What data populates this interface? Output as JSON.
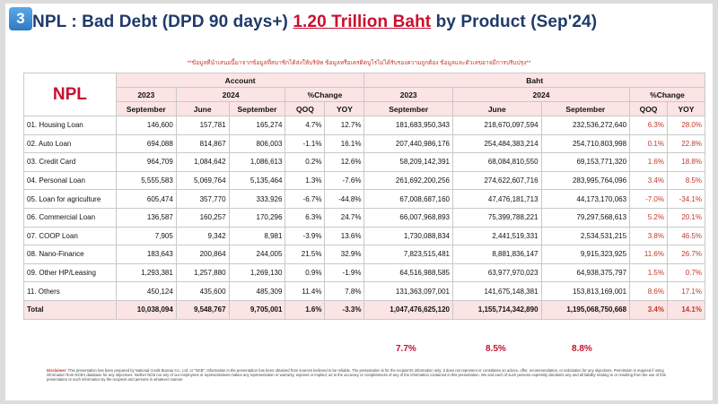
{
  "slide_number": "3",
  "title": {
    "prefix": "NPL : Bad Debt (DPD 90 days+) ",
    "highlight": "1.20 Trillion Baht",
    "suffix": " by Product (Sep'24)"
  },
  "note": "**ข้อมูลที่นำเสนอนี้มาจากข้อมูลที่สมาชิกได้ส่งให้บริษัท ข้อมูลหรือเครดิตบูโรไม่ได้รับรองความถูกต้อง ข้อมูลและตัวเลขอาจมีการปรับปรุง**",
  "table": {
    "npl_label": "NPL",
    "groups": {
      "account": "Account",
      "baht": "Baht"
    },
    "years": {
      "y2023": "2023",
      "y2024": "2024",
      "change": "%Change"
    },
    "subheaders": [
      "September",
      "June",
      "September",
      "QOQ",
      "YOY",
      "September",
      "June",
      "September",
      "QOQ",
      "YOY"
    ],
    "rows": [
      {
        "label": "01. Housing Loan",
        "acc": [
          "146,600",
          "157,781",
          "165,274",
          "4.7%",
          "12.7%"
        ],
        "baht": [
          "181,683,950,343",
          "218,670,097,594",
          "232,536,272,640",
          "6.3%",
          "28.0%"
        ]
      },
      {
        "label": "02. Auto Loan",
        "acc": [
          "694,088",
          "814,867",
          "806,003",
          "-1.1%",
          "16.1%"
        ],
        "baht": [
          "207,440,986,176",
          "254,484,383,214",
          "254,710,803,998",
          "0.1%",
          "22.8%"
        ]
      },
      {
        "label": "03. Credit Card",
        "acc": [
          "964,709",
          "1,084,642",
          "1,086,613",
          "0.2%",
          "12.6%"
        ],
        "baht": [
          "58,209,142,391",
          "68,084,810,550",
          "69,153,771,320",
          "1.6%",
          "18.8%"
        ]
      },
      {
        "label": "04. Personal Loan",
        "acc": [
          "5,555,583",
          "5,069,764",
          "5,135,464",
          "1.3%",
          "-7.6%"
        ],
        "baht": [
          "261,692,200,256",
          "274,622,607,716",
          "283,995,764,096",
          "3.4%",
          "8.5%"
        ]
      },
      {
        "label": "05. Loan for agriculture",
        "acc": [
          "605,474",
          "357,770",
          "333,926",
          "-6.7%",
          "-44.8%"
        ],
        "baht": [
          "67,008,687,160",
          "47,476,181,713",
          "44,173,170,063",
          "-7.0%",
          "-34.1%"
        ]
      },
      {
        "label": "06. Commercial Loan",
        "acc": [
          "136,587",
          "160,257",
          "170,296",
          "6.3%",
          "24.7%"
        ],
        "baht": [
          "66,007,968,893",
          "75,399,788,221",
          "79,297,568,613",
          "5.2%",
          "20.1%"
        ]
      },
      {
        "label": "07. COOP Loan",
        "acc": [
          "7,905",
          "9,342",
          "8,981",
          "-3.9%",
          "13.6%"
        ],
        "baht": [
          "1,730,088,834",
          "2,441,519,331",
          "2,534,531,215",
          "3.8%",
          "46.5%"
        ]
      },
      {
        "label": "08. Nano-Finance",
        "acc": [
          "183,643",
          "200,864",
          "244,005",
          "21.5%",
          "32.9%"
        ],
        "baht": [
          "7,823,515,481",
          "8,881,836,147",
          "9,915,323,925",
          "11.6%",
          "26.7%"
        ]
      },
      {
        "label": "09. Other HP/Leasing",
        "acc": [
          "1,293,381",
          "1,257,880",
          "1,269,130",
          "0.9%",
          "-1.9%"
        ],
        "baht": [
          "64,516,988,585",
          "63,977,970,023",
          "64,938,375,797",
          "1.5%",
          "0.7%"
        ]
      },
      {
        "label": "11. Others",
        "acc": [
          "450,124",
          "435,600",
          "485,309",
          "11.4%",
          "7.8%"
        ],
        "baht": [
          "131,363,097,001",
          "141,675,148,381",
          "153,813,169,001",
          "8.6%",
          "17.1%"
        ]
      }
    ],
    "total": {
      "label": "Total",
      "acc": [
        "10,038,094",
        "9,548,767",
        "9,705,001",
        "1.6%",
        "-3.3%"
      ],
      "baht": [
        "1,047,476,625,120",
        "1,155,714,342,890",
        "1,195,068,750,668",
        "3.4%",
        "14.1%"
      ]
    }
  },
  "growth": [
    "7.7%",
    "8.5%",
    "8.8%"
  ],
  "disclaimer": {
    "label": "Disclaimer:",
    "text": "This presentation has been prepared by National Credit Bureau Co., Ltd. or \"NCB\". Information in the presentation has been obtained from sources believed to be reliable. The presentation is for the recipient's information only; it does not represent or constitutes an advice, offer, recommendation, or solicitation for any objectives. Permission is required if using information from NCB's database for any objectives. Neither NCB nor any of our employees or representatives makes any representation or warranty, express or implied, as to the accuracy or completeness of any of the information contained in this presentation. We and each of such persons expressly disclaims any and all liability relating to or resulting from the use of this presentation or such information by the recipient and persons in whatever manner."
  },
  "colors": {
    "accent_red": "#c8102e",
    "title_navy": "#1f3a6b",
    "header_pink": "#fbe4e4"
  }
}
